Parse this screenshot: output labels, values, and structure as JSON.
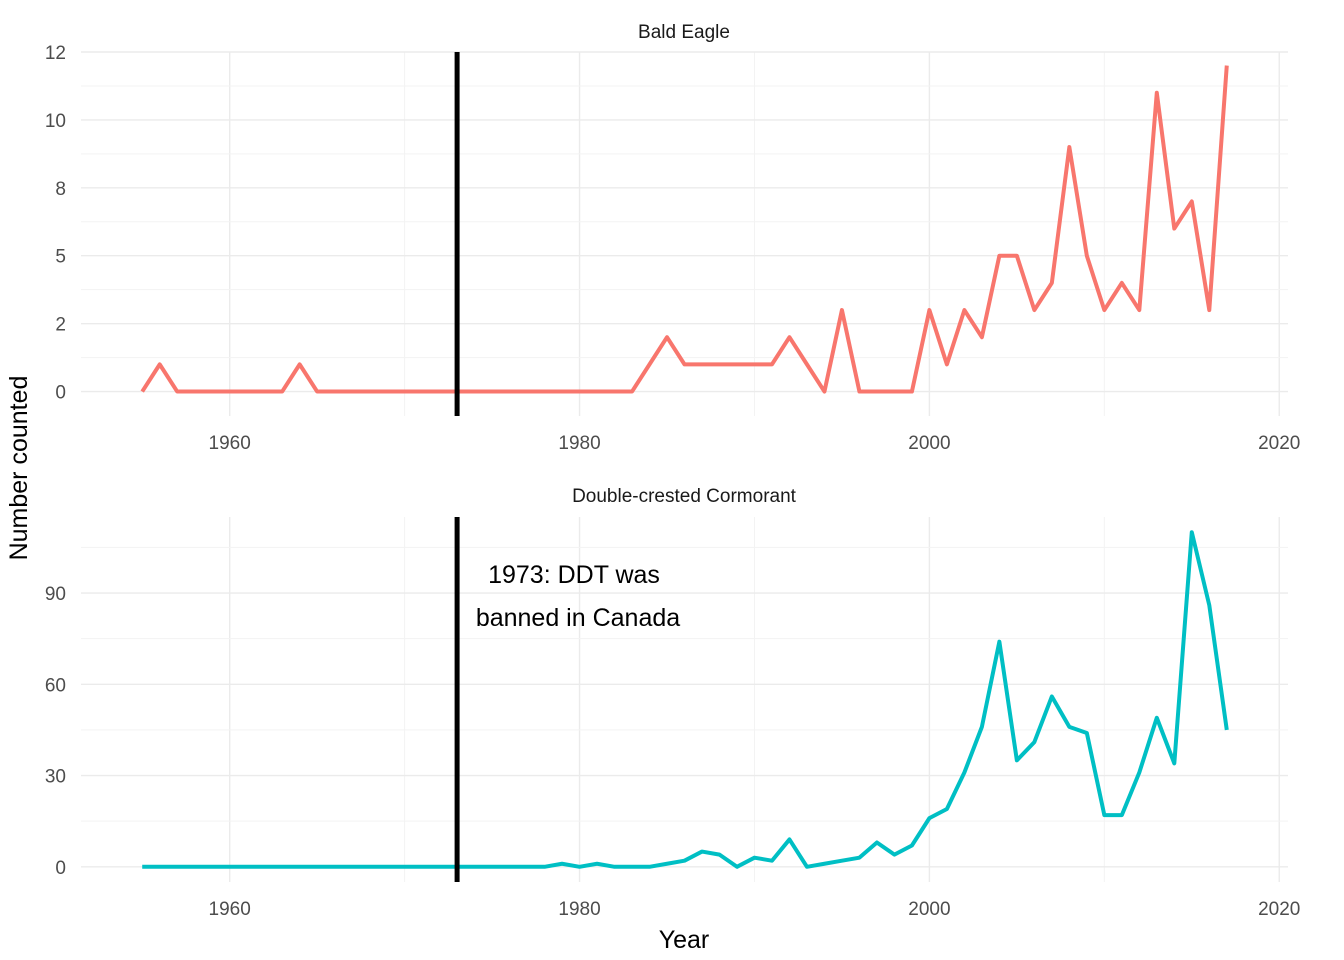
{
  "chart_data": {
    "type": "line",
    "layout": "faceted",
    "xlabel": "Year",
    "ylabel": "Number counted",
    "grid": true,
    "reference_line": {
      "x": 1973,
      "color": "#000000"
    },
    "annotation": {
      "line1": "1973: DDT was",
      "line2": "banned in Canada",
      "x": 1973
    },
    "panels": [
      {
        "name": "Bald Eagle",
        "color": "#F8766D",
        "xlim": [
          1951.5,
          2020.5
        ],
        "ylim": [
          -0.9,
          12.5
        ],
        "x_ticks": [
          1960,
          1980,
          2000,
          2020
        ],
        "y_ticks": [
          {
            "value": 0,
            "label": "0"
          },
          {
            "value": 2.5,
            "label": "2"
          },
          {
            "value": 5,
            "label": "5"
          },
          {
            "value": 7.5,
            "label": "8"
          },
          {
            "value": 10,
            "label": "10"
          },
          {
            "value": 12.5,
            "label": "12"
          }
        ],
        "x": [
          1955,
          1956,
          1957,
          1958,
          1959,
          1960,
          1961,
          1962,
          1963,
          1964,
          1965,
          1966,
          1967,
          1968,
          1969,
          1970,
          1971,
          1972,
          1973,
          1974,
          1975,
          1976,
          1977,
          1978,
          1979,
          1980,
          1981,
          1982,
          1983,
          1984,
          1985,
          1986,
          1987,
          1988,
          1989,
          1990,
          1991,
          1992,
          1993,
          1994,
          1995,
          1996,
          1997,
          1998,
          1999,
          2000,
          2001,
          2002,
          2003,
          2004,
          2005,
          2006,
          2007,
          2008,
          2009,
          2010,
          2011,
          2012,
          2013,
          2014,
          2015,
          2016,
          2017
        ],
        "values": [
          0,
          1,
          0,
          0,
          0,
          0,
          0,
          0,
          0,
          1,
          0,
          0,
          0,
          0,
          0,
          0,
          0,
          0,
          0,
          0,
          0,
          0,
          0,
          0,
          0,
          0,
          0,
          0,
          0,
          1,
          2,
          1,
          1,
          1,
          1,
          1,
          1,
          2,
          1,
          0,
          3,
          0,
          0,
          0,
          0,
          3,
          1,
          3,
          2,
          5,
          5,
          3,
          4,
          9,
          5,
          3,
          4,
          3,
          11,
          6,
          7,
          3,
          12
        ]
      },
      {
        "name": "Double-crested Cormorant",
        "color": "#00BFC4",
        "xlim": [
          1951.5,
          2020.5
        ],
        "ylim": [
          -5,
          115
        ],
        "x_ticks": [
          1960,
          1980,
          2000,
          2020
        ],
        "y_ticks": [
          {
            "value": 0,
            "label": "0"
          },
          {
            "value": 30,
            "label": "30"
          },
          {
            "value": 60,
            "label": "60"
          },
          {
            "value": 90,
            "label": "90"
          }
        ],
        "x": [
          1955,
          1956,
          1957,
          1958,
          1959,
          1960,
          1961,
          1962,
          1963,
          1964,
          1965,
          1966,
          1967,
          1968,
          1969,
          1970,
          1971,
          1972,
          1973,
          1974,
          1975,
          1976,
          1977,
          1978,
          1979,
          1980,
          1981,
          1982,
          1983,
          1984,
          1985,
          1986,
          1987,
          1988,
          1989,
          1990,
          1991,
          1992,
          1993,
          1994,
          1995,
          1996,
          1997,
          1998,
          1999,
          2000,
          2001,
          2002,
          2003,
          2004,
          2005,
          2006,
          2007,
          2008,
          2009,
          2010,
          2011,
          2012,
          2013,
          2014,
          2015,
          2016,
          2017
        ],
        "values": [
          0,
          0,
          0,
          0,
          0,
          0,
          0,
          0,
          0,
          0,
          0,
          0,
          0,
          0,
          0,
          0,
          0,
          0,
          0,
          0,
          0,
          0,
          0,
          0,
          1,
          0,
          1,
          0,
          0,
          0,
          1,
          2,
          5,
          4,
          0,
          3,
          2,
          9,
          0,
          1,
          2,
          3,
          8,
          4,
          7,
          16,
          19,
          31,
          46,
          74,
          35,
          41,
          56,
          46,
          44,
          17,
          17,
          31,
          49,
          34,
          110,
          86,
          45
        ]
      }
    ]
  }
}
